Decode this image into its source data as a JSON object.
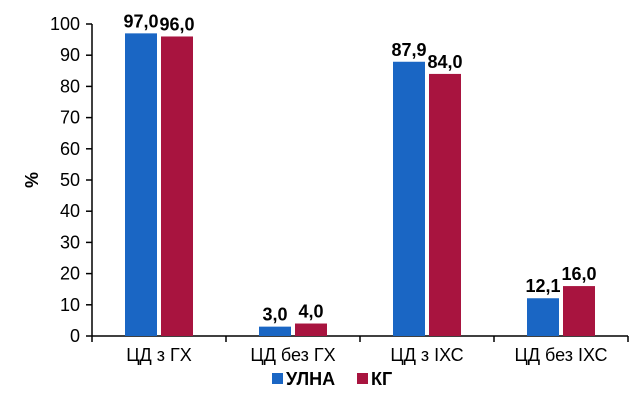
{
  "chart_data": {
    "type": "bar",
    "categories": [
      "ЦД з ГХ",
      "ЦД без ГХ",
      "ЦД з ІХС",
      "ЦД без ІХС"
    ],
    "series": [
      {
        "name": "УЛНА",
        "values": [
          97.0,
          3.0,
          87.9,
          12.1
        ],
        "labels": [
          "97,0",
          "3,0",
          "87,9",
          "12,1"
        ],
        "color": "#1a66c4"
      },
      {
        "name": "КГ",
        "values": [
          96.0,
          4.0,
          84.0,
          16.0
        ],
        "labels": [
          "96,0",
          "4,0",
          "84,0",
          "16,0"
        ],
        "color": "#a8143f"
      }
    ],
    "ylabel": "%",
    "ylim": [
      0,
      100
    ],
    "yticks": [
      0,
      10,
      20,
      30,
      40,
      50,
      60,
      70,
      80,
      90,
      100
    ],
    "grid": false,
    "legend": "bottom"
  }
}
